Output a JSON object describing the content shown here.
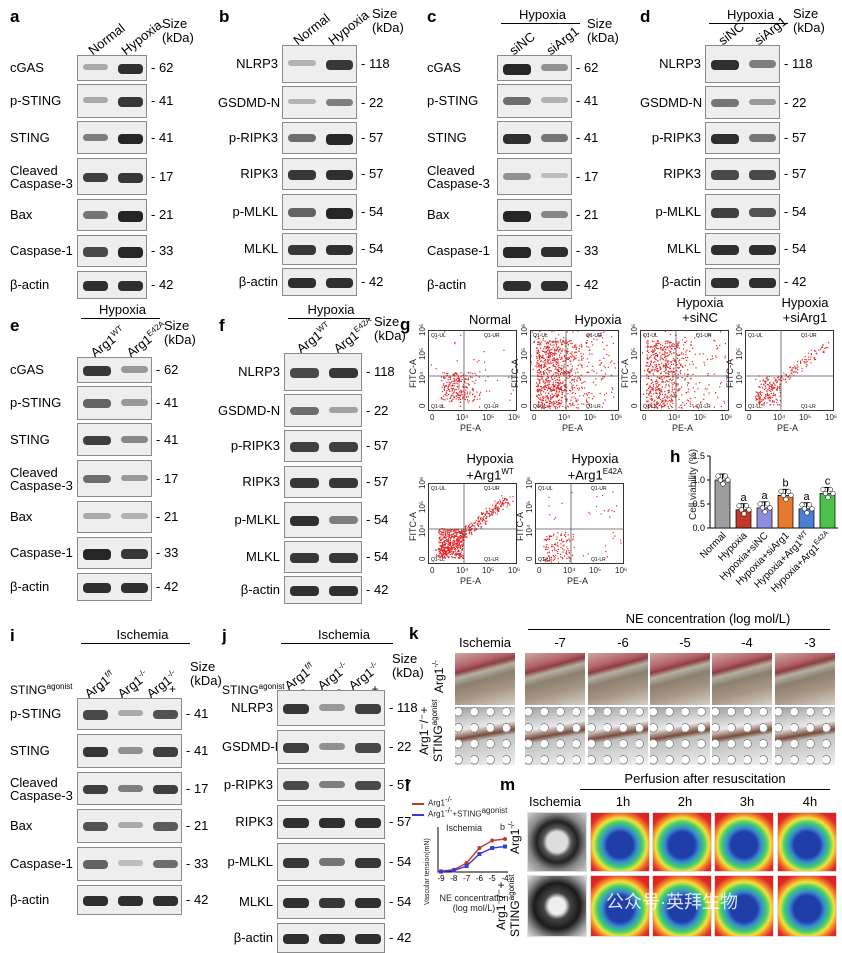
{
  "panels": {
    "a": {
      "letter": "a",
      "cols": [
        "Normal",
        "Hypoxia"
      ],
      "size_header": "Size\n(kDa)",
      "rows": [
        {
          "label": "cGAS",
          "size": "62",
          "i": [
            0.2,
            0.9
          ]
        },
        {
          "label": "p-STING",
          "size": "41",
          "i": [
            0.2,
            0.85
          ]
        },
        {
          "label": "STING",
          "size": "41",
          "i": [
            0.45,
            0.95
          ]
        },
        {
          "label": "Cleaved\nCaspase-3",
          "size": "17",
          "i": [
            0.8,
            0.85
          ]
        },
        {
          "label": "Bax",
          "size": "21",
          "i": [
            0.5,
            0.95
          ]
        },
        {
          "label": "Caspase-1",
          "size": "33",
          "i": [
            0.75,
            0.95
          ]
        },
        {
          "label": "β-actin",
          "size": "42",
          "i": [
            0.9,
            0.9
          ]
        }
      ]
    },
    "b": {
      "letter": "b",
      "cols": [
        "Normal",
        "Hypoxia"
      ],
      "size_header": "Size\n(kDa)",
      "rows": [
        {
          "label": "NLRP3",
          "size": "118",
          "i": [
            0.15,
            0.85
          ]
        },
        {
          "label": "GSDMD-N",
          "size": "22",
          "i": [
            0.15,
            0.45
          ]
        },
        {
          "label": "p-RIPK3",
          "size": "57",
          "i": [
            0.55,
            0.95
          ]
        },
        {
          "label": "RIPK3",
          "size": "57",
          "i": [
            0.85,
            0.9
          ]
        },
        {
          "label": "p-MLKL",
          "size": "54",
          "i": [
            0.6,
            0.95
          ]
        },
        {
          "label": "MLKL",
          "size": "54",
          "i": [
            0.85,
            0.9
          ]
        },
        {
          "label": "β-actin",
          "size": "42",
          "i": [
            0.9,
            0.9
          ]
        }
      ]
    },
    "c": {
      "letter": "c",
      "group": "Hypoxia",
      "cols": [
        "siNC",
        "siArg1"
      ],
      "size_header": "Size\n(kDa)",
      "rows": [
        {
          "label": "cGAS",
          "size": "62",
          "i": [
            0.95,
            0.35
          ]
        },
        {
          "label": "p-STING",
          "size": "41",
          "i": [
            0.55,
            0.15
          ]
        },
        {
          "label": "STING",
          "size": "41",
          "i": [
            0.9,
            0.5
          ]
        },
        {
          "label": "Cleaved\nCaspase-3",
          "size": "17",
          "i": [
            0.35,
            0.1
          ]
        },
        {
          "label": "Bax",
          "size": "21",
          "i": [
            0.95,
            0.4
          ]
        },
        {
          "label": "Caspase-1",
          "size": "33",
          "i": [
            0.95,
            0.9
          ]
        },
        {
          "label": "β-actin",
          "size": "42",
          "i": [
            0.9,
            0.9
          ]
        }
      ]
    },
    "d": {
      "letter": "d",
      "group": "Hypoxia",
      "cols": [
        "siNC",
        "siArg1"
      ],
      "size_header": "Size\n(kDa)",
      "rows": [
        {
          "label": "NLRP3",
          "size": "118",
          "i": [
            0.9,
            0.45
          ]
        },
        {
          "label": "GSDMD-N",
          "size": "22",
          "i": [
            0.5,
            0.3
          ]
        },
        {
          "label": "p-RIPK3",
          "size": "57",
          "i": [
            0.9,
            0.5
          ]
        },
        {
          "label": "RIPK3",
          "size": "57",
          "i": [
            0.75,
            0.75
          ]
        },
        {
          "label": "p-MLKL",
          "size": "54",
          "i": [
            0.8,
            0.7
          ]
        },
        {
          "label": "MLKL",
          "size": "54",
          "i": [
            0.9,
            0.9
          ]
        },
        {
          "label": "β-actin",
          "size": "42",
          "i": [
            0.9,
            0.9
          ]
        }
      ]
    },
    "e": {
      "letter": "e",
      "group": "Hypoxia",
      "cols": [
        "Arg1",
        "Arg1"
      ],
      "col_sups": [
        "WT",
        "E42A"
      ],
      "size_header": "Size\n(kDa)",
      "rows": [
        {
          "label": "cGAS",
          "size": "62",
          "i": [
            0.85,
            0.3
          ]
        },
        {
          "label": "p-STING",
          "size": "41",
          "i": [
            0.6,
            0.3
          ]
        },
        {
          "label": "STING",
          "size": "41",
          "i": [
            0.8,
            0.4
          ]
        },
        {
          "label": "Cleaved\nCaspase-3",
          "size": "17",
          "i": [
            0.55,
            0.3
          ]
        },
        {
          "label": "Bax",
          "size": "21",
          "i": [
            0.2,
            0.15
          ]
        },
        {
          "label": "Caspase-1",
          "size": "33",
          "i": [
            0.95,
            0.85
          ]
        },
        {
          "label": "β-actin",
          "size": "42",
          "i": [
            0.9,
            0.9
          ]
        }
      ]
    },
    "f": {
      "letter": "f",
      "group": "Hypoxia",
      "cols": [
        "Arg1",
        "Arg1"
      ],
      "col_sups": [
        "WT",
        "E42A"
      ],
      "size_header": "Size\n(kDa)",
      "rows": [
        {
          "label": "NLRP3",
          "size": "118",
          "i": [
            0.75,
            0.85
          ]
        },
        {
          "label": "GSDMD-N",
          "size": "22",
          "i": [
            0.55,
            0.25
          ]
        },
        {
          "label": "p-RIPK3",
          "size": "57",
          "i": [
            0.8,
            0.8
          ]
        },
        {
          "label": "RIPK3",
          "size": "57",
          "i": [
            0.85,
            0.85
          ]
        },
        {
          "label": "p-MLKL",
          "size": "54",
          "i": [
            0.9,
            0.45
          ]
        },
        {
          "label": "MLKL",
          "size": "54",
          "i": [
            0.85,
            0.85
          ]
        },
        {
          "label": "β-actin",
          "size": "42",
          "i": [
            0.9,
            0.9
          ]
        }
      ]
    },
    "i": {
      "letter": "i",
      "group": "Ischemia",
      "cols": [
        "Arg1",
        "Arg1",
        "Arg1"
      ],
      "col_sups": [
        "f/f",
        "-/-",
        "-/-"
      ],
      "agonist_label": "STING",
      "agonist_sup": "agonist",
      "agonist_signs": [
        "-",
        "-",
        "+"
      ],
      "size_header": "Size\n(kDa)",
      "rows": [
        {
          "label": "p-STING",
          "size": "41",
          "i": [
            0.75,
            0.2,
            0.7
          ]
        },
        {
          "label": "STING",
          "size": "41",
          "i": [
            0.85,
            0.35,
            0.8
          ]
        },
        {
          "label": "Cleaved\nCaspase-3",
          "size": "17",
          "i": [
            0.8,
            0.45,
            0.8
          ]
        },
        {
          "label": "Bax",
          "size": "21",
          "i": [
            0.7,
            0.2,
            0.65
          ]
        },
        {
          "label": "Caspase-1",
          "size": "33",
          "i": [
            0.6,
            0.1,
            0.55
          ]
        },
        {
          "label": "β-actin",
          "size": "42",
          "i": [
            0.9,
            0.9,
            0.9
          ]
        }
      ]
    },
    "j": {
      "letter": "j",
      "group": "Ischemia",
      "cols": [
        "Arg1",
        "Arg1",
        "Arg1"
      ],
      "col_sups": [
        "f/f",
        "-/-",
        "-/-"
      ],
      "agonist_label": "STING",
      "agonist_sup": "agonist",
      "agonist_signs": [
        "-",
        "-",
        "+"
      ],
      "size_header": "Size\n(kDa)",
      "rows": [
        {
          "label": "NLRP3",
          "size": "118",
          "i": [
            0.85,
            0.3,
            0.8
          ]
        },
        {
          "label": "GSDMD-N",
          "size": "22",
          "i": [
            0.8,
            0.35,
            0.75
          ]
        },
        {
          "label": "p-RIPK3",
          "size": "57",
          "i": [
            0.75,
            0.45,
            0.75
          ]
        },
        {
          "label": "RIPK3",
          "size": "57",
          "i": [
            0.9,
            0.9,
            0.9
          ]
        },
        {
          "label": "p-MLKL",
          "size": "54",
          "i": [
            0.85,
            0.5,
            0.85
          ]
        },
        {
          "label": "MLKL",
          "size": "54",
          "i": [
            0.9,
            0.85,
            0.9
          ]
        },
        {
          "label": "β-actin",
          "size": "42",
          "i": [
            0.9,
            0.9,
            0.9
          ]
        }
      ]
    }
  },
  "panel_g": {
    "letter": "g",
    "quad_labels": [
      "Q1-UL",
      "Q1-UR",
      "Q1-LL",
      "Q1-LR"
    ],
    "x_axis": "PE-A",
    "y_axis": "FITC-A",
    "x_ticks": [
      "0",
      "10⁴",
      "10⁵",
      "10⁶"
    ],
    "y_ticks": [
      "0",
      "10⁴",
      "10⁵",
      "10⁶"
    ],
    "plots": [
      {
        "title": "Normal",
        "sup": ""
      },
      {
        "title": "Hypoxia",
        "sup": ""
      },
      {
        "title": "Hypoxia\n+siNC",
        "sup": ""
      },
      {
        "title": "Hypoxia\n+siArg1",
        "sup": ""
      },
      {
        "title": "Hypoxia\n+Arg1",
        "sup": "WT"
      },
      {
        "title": "Hypoxia\n+Arg1",
        "sup": "E42A"
      }
    ]
  },
  "chart_data": [
    {
      "type": "bar",
      "panel": "h",
      "ylabel": "Cell viability (%)",
      "y_ticks": [
        "0.0",
        "0.5",
        "1.0",
        "1.5"
      ],
      "ylim": [
        0,
        1.5
      ],
      "categories": [
        "Normal",
        "Hypoxia",
        "Hypoxia+siNC",
        "Hypoxia+siArg1",
        "Hypoxia+Arg1",
        "Hypoxia+Arg1"
      ],
      "category_sups": [
        "",
        "",
        "",
        "",
        "WT",
        "E42A"
      ],
      "values": [
        1.0,
        0.38,
        0.42,
        0.68,
        0.4,
        0.72
      ],
      "letters": [
        "",
        "a",
        "a",
        "b",
        "a",
        "c"
      ],
      "colors": [
        "#9e9e9e",
        "#c0392b",
        "#8e8ee0",
        "#e8792c",
        "#4a7fd6",
        "#4cc24c"
      ]
    },
    {
      "type": "line",
      "panel": "l",
      "title": "Ischemia",
      "ylabel": "Vascular tension(mN)",
      "xlabel": "NE concentration\n(log mol/L)",
      "x_ticks": [
        "-9",
        "-8",
        "-7",
        "-6",
        "-5",
        "-4"
      ],
      "y_ticks": [
        "0",
        "10",
        "20",
        "30"
      ],
      "x": [
        -9,
        -8,
        -7,
        -6,
        -5,
        -4
      ],
      "ylim": [
        0,
        30
      ],
      "annotation": "b",
      "series": [
        {
          "name": "Arg1",
          "sup": "-/-",
          "color": "#c0392b",
          "values": [
            0.5,
            1.5,
            6,
            16,
            21,
            22
          ]
        },
        {
          "name": "Arg1",
          "sup": "-/-",
          "suffix": "+STING",
          "suffix_sup": "agonist",
          "color": "#3a3ad6",
          "values": [
            0.3,
            1,
            4,
            12,
            16,
            17
          ]
        }
      ]
    }
  ],
  "panel_k": {
    "letter": "k",
    "header": "NE concentration (log mol/L)",
    "cols": [
      "Ischemia",
      "-7",
      "-6",
      "-5",
      "-4",
      "-3"
    ],
    "rows": [
      {
        "label": "Arg1",
        "sup": "-/-"
      },
      {
        "label": "Arg1⁻/⁻+\nSTING",
        "sup": "agonist"
      }
    ]
  },
  "panel_m": {
    "letter": "m",
    "header": "Perfusion after resuscitation",
    "cols": [
      "Ischemia",
      "1h",
      "2h",
      "3h",
      "4h"
    ],
    "rows": [
      {
        "label": "Arg1",
        "sup": "-/-"
      },
      {
        "label": "Arg1⁻/⁻+\nSTING",
        "sup": "agonist"
      }
    ],
    "watermark": "公众号·英拜生物"
  }
}
